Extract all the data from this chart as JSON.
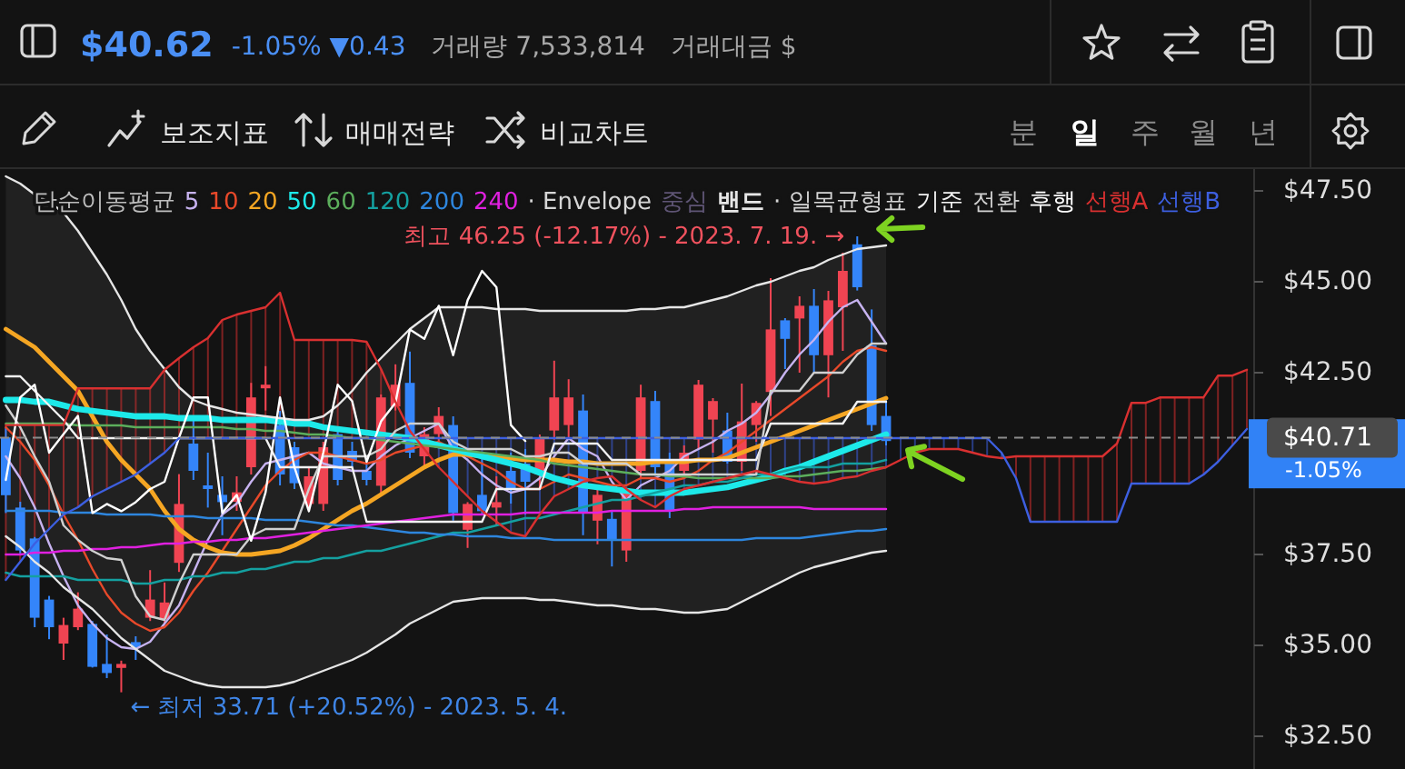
{
  "chart_data": {
    "type": "candlestick",
    "title": "$40.62",
    "subtitle": "-1.05% ▼0.43",
    "legend_title": "단순이동평균",
    "legend": "top",
    "tick_labels": "y",
    "annotations": [
      "· Envelope",
      "중심",
      "· 일목균형표",
      "최고 46.25 (-12.17%) - 2023. 7. 19. →",
      "← 최저 33.71 (+20.52%) - 2023. 5. 4.",
      "거래량 7,533,814",
      "거래대금 $",
      "보조지표",
      "매매전략",
      "비교차트",
      "분",
      "일",
      "주",
      "월",
      "년",
      "-1.05%"
    ],
    "categories": [
      null,
      null,
      null,
      null,
      null,
      null,
      null,
      null,
      null,
      null,
      null,
      null,
      null,
      null,
      null,
      null,
      null,
      null,
      null,
      null,
      null,
      null,
      null,
      null,
      null,
      null,
      null,
      null,
      null,
      null,
      null,
      null,
      null,
      null,
      null,
      null,
      null,
      null,
      null,
      null,
      null,
      null,
      null,
      null,
      null,
      null,
      null,
      null,
      null,
      null,
      null,
      null,
      null,
      null,
      null,
      null,
      null,
      null,
      null,
      null,
      null,
      null,
      null,
      null,
      null,
      null,
      null,
      null,
      null,
      null,
      null,
      null,
      null,
      null,
      null,
      null,
      null,
      null,
      null,
      null,
      null,
      null,
      null,
      null,
      null,
      null,
      null
    ],
    "ylim": [
      31.6,
      48.1
    ],
    "yticks": [
      {
        "value": 32.5,
        "label": "$32.50"
      },
      {
        "value": 35,
        "label": "$35.00"
      },
      {
        "value": 37.5,
        "label": "$37.50"
      },
      {
        "value": 42.5,
        "label": "$42.50"
      },
      {
        "value": 45,
        "label": "$45.00"
      },
      {
        "value": 47.5,
        "label": "$47.50"
      }
    ],
    "ref_lines": [
      {
        "axis": "y",
        "value": 40.71,
        "label": "$40.71",
        "color": "#8c8c8c",
        "line_style": "dashed"
      }
    ],
    "ohlc": [
      [
        40.72,
        41.0,
        38.64,
        39.13
      ],
      [
        38.79,
        38.95,
        37.53,
        37.61
      ],
      [
        37.94,
        37.98,
        35.5,
        35.76
      ],
      [
        36.26,
        36.36,
        35.17,
        35.5
      ],
      [
        35.05,
        35.76,
        34.6,
        35.56
      ],
      [
        35.5,
        36.46,
        35.42,
        36.01
      ],
      [
        35.59,
        35.67,
        34.39,
        34.41
      ],
      [
        34.49,
        35.3,
        34.1,
        34.24
      ],
      [
        34.38,
        34.58,
        33.71,
        34.49
      ],
      [
        35.09,
        35.25,
        34.6,
        34.95
      ],
      [
        35.76,
        37.07,
        35.67,
        36.26
      ],
      [
        35.72,
        36.73,
        35.56,
        36.18
      ],
      [
        37.27,
        39.71,
        37.02,
        38.89
      ],
      [
        40.55,
        41.23,
        39.55,
        39.8
      ],
      [
        39.4,
        40.3,
        38.79,
        39.3
      ],
      [
        39.14,
        39.65,
        38.03,
        38.94
      ],
      [
        38.95,
        39.65,
        38.7,
        39.21
      ],
      [
        39.9,
        42.22,
        39.7,
        41.82
      ],
      [
        42.07,
        42.68,
        41.46,
        42.17
      ],
      [
        41.06,
        41.45,
        39.4,
        39.7
      ],
      [
        40.45,
        40.6,
        39.3,
        39.46
      ],
      [
        38.89,
        39.9,
        38.7,
        39.65
      ],
      [
        38.89,
        40.6,
        38.7,
        40.45
      ],
      [
        40.81,
        41.0,
        39.4,
        39.55
      ],
      [
        40.35,
        40.6,
        39.9,
        40.05
      ],
      [
        39.8,
        40.1,
        39.4,
        39.55
      ],
      [
        39.39,
        41.9,
        39.14,
        41.82
      ],
      [
        41.57,
        42.73,
        41.46,
        42.17
      ],
      [
        42.22,
        43.08,
        40.15,
        40.3
      ],
      [
        40.2,
        41.0,
        39.9,
        40.81
      ],
      [
        40.81,
        41.55,
        40.5,
        41.31
      ],
      [
        41.06,
        41.3,
        38.43,
        38.64
      ],
      [
        38.18,
        38.94,
        37.68,
        38.89
      ],
      [
        39.14,
        40.3,
        38.6,
        38.69
      ],
      [
        38.79,
        39.65,
        38.28,
        38.94
      ],
      [
        39.8,
        40.3,
        38.9,
        39.3
      ],
      [
        40.0,
        40.4,
        38.6,
        39.5
      ],
      [
        39.7,
        40.8,
        39.3,
        40.71
      ],
      [
        40.91,
        42.83,
        40.66,
        41.82
      ],
      [
        41.06,
        42.32,
        40.71,
        41.82
      ],
      [
        41.46,
        41.9,
        38.03,
        38.64
      ],
      [
        38.43,
        39.39,
        37.78,
        39.14
      ],
      [
        38.48,
        38.69,
        37.17,
        37.88
      ],
      [
        37.61,
        39.3,
        37.3,
        39.21
      ],
      [
        39.8,
        42.17,
        39.6,
        41.82
      ],
      [
        41.72,
        42.0,
        39.7,
        39.9
      ],
      [
        40.05,
        40.3,
        38.5,
        38.69
      ],
      [
        39.8,
        40.5,
        39.6,
        40.3
      ],
      [
        40.66,
        42.3,
        40.4,
        42.17
      ],
      [
        41.21,
        41.8,
        40.3,
        41.72
      ],
      [
        40.91,
        41.4,
        40.0,
        40.05
      ],
      [
        40.05,
        42.2,
        39.8,
        41.16
      ],
      [
        41.06,
        41.72,
        40.6,
        41.67
      ],
      [
        41.97,
        45.1,
        41.31,
        43.69
      ],
      [
        43.94,
        44.0,
        42.6,
        43.43
      ],
      [
        43.99,
        44.6,
        42.5,
        44.34
      ],
      [
        44.34,
        44.8,
        42.5,
        42.98
      ],
      [
        42.98,
        44.75,
        41.82,
        44.49
      ],
      [
        44.3,
        45.8,
        43.1,
        45.3
      ],
      [
        46.03,
        46.25,
        44.76,
        44.85
      ],
      [
        43.25,
        44.24,
        40.9,
        41.06
      ],
      [
        41.31,
        41.82,
        40.5,
        40.62
      ],
      null,
      null,
      null,
      null,
      null,
      null,
      null,
      null,
      null,
      null,
      null,
      null,
      null,
      null,
      null,
      null,
      null,
      null,
      null,
      null,
      null,
      null,
      null,
      null,
      null
    ],
    "colors": [
      "#3485fa",
      "#3485fa",
      "#3485fa",
      "#3485fa",
      "#f04452",
      "#f04452",
      "#3485fa",
      "#3485fa",
      "#f04452",
      "#3485fa",
      "#f04452",
      "#f04452",
      "#f04452",
      "#3485fa",
      "#3485fa",
      "#3485fa",
      "#f04452",
      "#f04452",
      "#f04452",
      "#3485fa",
      "#3485fa",
      "#f04452",
      "#f04452",
      "#3485fa",
      "#3485fa",
      "#3485fa",
      "#f04452",
      "#f04452",
      "#3485fa",
      "#f04452",
      "#f04452",
      "#3485fa",
      "#f04452",
      "#3485fa",
      "#f04452",
      "#3485fa",
      "#3485fa",
      "#f04452",
      "#f04452",
      "#f04452",
      "#3485fa",
      "#f04452",
      "#3485fa",
      "#f04452",
      "#f04452",
      "#3485fa",
      "#3485fa",
      "#f04452",
      "#f04452",
      "#f04452",
      "#3485fa",
      "#f04452",
      "#f04452",
      "#f04452",
      "#3485fa",
      "#f04452",
      "#3485fa",
      "#f04452",
      "#f04452",
      "#3485fa",
      "#3485fa",
      "#3485fa",
      null,
      null,
      null,
      null,
      null,
      null,
      null,
      null,
      null,
      null,
      null,
      null,
      null,
      null,
      null,
      null,
      null,
      null,
      null,
      null,
      null,
      null,
      null,
      null,
      null
    ],
    "series": [
      {
        "name": "5",
        "type": "line",
        "color": "#c7b3f0",
        "values": [
          40.2,
          39.6,
          38.8,
          37.8,
          36.9,
          36.1,
          35.6,
          35.2,
          34.95,
          34.9,
          35.1,
          35.6,
          36.1,
          37.0,
          37.9,
          38.6,
          38.9,
          39.5,
          40.0,
          40.1,
          40.2,
          40.3,
          40.0,
          39.9,
          39.8,
          39.8,
          40.2,
          40.5,
          40.7,
          40.9,
          41.1,
          40.4,
          40.1,
          39.7,
          39.4,
          39.2,
          39.3,
          39.6,
          40.2,
          40.7,
          40.4,
          40.2,
          39.5,
          39.0,
          39.4,
          39.6,
          39.8,
          40.2,
          40.4,
          40.6,
          40.9,
          41.1,
          41.4,
          41.9,
          42.5,
          43.0,
          43.4,
          43.9,
          44.3,
          44.5,
          43.9,
          43.3,
          null,
          null,
          null,
          null,
          null,
          null,
          null,
          null,
          null,
          null,
          null,
          null,
          null,
          null,
          null,
          null,
          null,
          null,
          null,
          null,
          null,
          null,
          null,
          null,
          null
        ]
      },
      {
        "name": "10",
        "type": "line",
        "color": "#e8492a",
        "values": [
          41.0,
          40.6,
          40.1,
          39.4,
          38.6,
          37.9,
          37.1,
          36.4,
          35.9,
          35.6,
          35.4,
          35.5,
          35.9,
          36.5,
          37.0,
          37.6,
          38.2,
          38.8,
          39.4,
          39.8,
          40.1,
          40.3,
          40.3,
          40.2,
          40.1,
          40.0,
          40.1,
          40.3,
          40.4,
          40.5,
          40.6,
          40.4,
          40.2,
          40.0,
          39.8,
          39.5,
          39.3,
          39.3,
          39.5,
          39.7,
          39.6,
          39.5,
          39.4,
          39.4,
          39.6,
          39.6,
          39.5,
          39.6,
          39.8,
          40.1,
          40.3,
          40.6,
          40.9,
          41.2,
          41.5,
          41.8,
          42.1,
          42.4,
          42.8,
          43.1,
          43.2,
          43.1,
          null,
          null,
          null,
          null,
          null,
          null,
          null,
          null,
          null,
          null,
          null,
          null,
          null,
          null,
          null,
          null,
          null,
          null,
          null,
          null,
          null,
          null,
          null,
          null,
          null
        ]
      },
      {
        "name": "20",
        "type": "line",
        "color": "#f5a623",
        "values": [
          43.7,
          43.45,
          43.2,
          42.8,
          42.4,
          42.0,
          41.3,
          40.6,
          40.1,
          39.7,
          39.3,
          38.7,
          38.2,
          37.9,
          37.7,
          37.55,
          37.5,
          37.5,
          37.55,
          37.6,
          37.75,
          37.95,
          38.2,
          38.45,
          38.7,
          38.9,
          39.15,
          39.4,
          39.65,
          39.9,
          40.1,
          40.25,
          40.25,
          40.2,
          40.2,
          40.15,
          40.1,
          40.1,
          40.1,
          40.05,
          40.05,
          40.0,
          40.0,
          40.0,
          40.0,
          40.05,
          40.05,
          40.05,
          40.1,
          40.1,
          40.15,
          40.3,
          40.45,
          40.6,
          40.75,
          40.9,
          41.05,
          41.2,
          41.35,
          41.5,
          41.65,
          41.8,
          null,
          null,
          null,
          null,
          null,
          null,
          null,
          null,
          null,
          null,
          null,
          null,
          null,
          null,
          null,
          null,
          null,
          null,
          null,
          null,
          null,
          null,
          null,
          null,
          null
        ]
      },
      {
        "name": "50",
        "type": "line",
        "color": "#1de9e9",
        "values": [
          41.75,
          41.75,
          41.7,
          41.7,
          41.6,
          41.5,
          41.45,
          41.4,
          41.35,
          41.3,
          41.3,
          41.3,
          41.25,
          41.25,
          41.25,
          41.2,
          41.2,
          41.2,
          41.2,
          41.15,
          41.1,
          41.1,
          41.0,
          40.95,
          40.9,
          40.85,
          40.8,
          40.75,
          40.7,
          40.6,
          40.5,
          40.4,
          40.3,
          40.2,
          40.1,
          40.0,
          39.9,
          39.75,
          39.6,
          39.5,
          39.4,
          39.35,
          39.3,
          39.25,
          39.2,
          39.2,
          39.2,
          39.2,
          39.25,
          39.3,
          39.35,
          39.45,
          39.55,
          39.65,
          39.8,
          39.9,
          40.05,
          40.2,
          40.35,
          40.5,
          40.65,
          40.8,
          null,
          null,
          null,
          null,
          null,
          null,
          null,
          null,
          null,
          null,
          null,
          null,
          null,
          null,
          null,
          null,
          null,
          null,
          null,
          null,
          null,
          null,
          null,
          null,
          null
        ]
      },
      {
        "name": "60",
        "type": "line",
        "color": "#5cae5c",
        "values": [
          41.1,
          41.1,
          41.1,
          41.1,
          41.1,
          41.05,
          41.05,
          41.05,
          41.05,
          41.0,
          41.0,
          41.0,
          41.0,
          41.0,
          41.0,
          41.0,
          40.95,
          40.95,
          40.9,
          40.9,
          40.85,
          40.8,
          40.8,
          40.75,
          40.7,
          40.7,
          40.65,
          40.6,
          40.55,
          40.5,
          40.45,
          40.4,
          40.35,
          40.3,
          40.25,
          40.2,
          40.15,
          40.1,
          40.0,
          39.95,
          39.9,
          39.85,
          39.8,
          39.75,
          39.7,
          39.7,
          39.65,
          39.65,
          39.6,
          39.6,
          39.6,
          39.6,
          39.6,
          39.6,
          39.65,
          39.65,
          39.7,
          39.75,
          39.8,
          39.8,
          39.85,
          39.9,
          null,
          null,
          null,
          null,
          null,
          null,
          null,
          null,
          null,
          null,
          null,
          null,
          null,
          null,
          null,
          null,
          null,
          null,
          null,
          null,
          null,
          null,
          null,
          null,
          null
        ]
      },
      {
        "name": "120",
        "type": "line",
        "color": "#14a0a0",
        "values": [
          37.0,
          36.9,
          36.9,
          36.9,
          36.9,
          36.8,
          36.8,
          36.8,
          36.8,
          36.7,
          36.7,
          36.8,
          36.8,
          36.9,
          36.9,
          37.0,
          37.0,
          37.1,
          37.1,
          37.2,
          37.3,
          37.3,
          37.4,
          37.4,
          37.5,
          37.6,
          37.6,
          37.7,
          37.8,
          37.9,
          38.0,
          38.1,
          38.1,
          38.2,
          38.3,
          38.4,
          38.5,
          38.5,
          38.6,
          38.7,
          38.8,
          38.9,
          39.0,
          39.0,
          39.1,
          39.2,
          39.3,
          39.4,
          39.4,
          39.5,
          39.5,
          39.6,
          39.7,
          39.7,
          39.8,
          39.9,
          39.9,
          39.9,
          40.0,
          40.0,
          40.0,
          40.1,
          null,
          null,
          null,
          null,
          null,
          null,
          null,
          null,
          null,
          null,
          null,
          null,
          null,
          null,
          null,
          null,
          null,
          null,
          null,
          null,
          null,
          null,
          null,
          null,
          null
        ]
      },
      {
        "name": "200",
        "type": "line",
        "color": "#2e86de",
        "values": [
          38.7,
          38.7,
          38.7,
          38.7,
          38.65,
          38.65,
          38.65,
          38.6,
          38.6,
          38.6,
          38.6,
          38.55,
          38.55,
          38.55,
          38.5,
          38.5,
          38.5,
          38.5,
          38.45,
          38.45,
          38.45,
          38.4,
          38.35,
          38.3,
          38.3,
          38.25,
          38.2,
          38.15,
          38.1,
          38.1,
          38.05,
          38.05,
          38.0,
          38.0,
          38.0,
          37.95,
          37.95,
          37.95,
          37.9,
          37.9,
          37.9,
          37.9,
          37.9,
          37.9,
          37.9,
          37.9,
          37.9,
          37.9,
          37.9,
          37.9,
          37.9,
          37.9,
          37.95,
          37.95,
          37.95,
          37.95,
          38.0,
          38.05,
          38.1,
          38.15,
          38.15,
          38.2,
          null,
          null,
          null,
          null,
          null,
          null,
          null,
          null,
          null,
          null,
          null,
          null,
          null,
          null,
          null,
          null,
          null,
          null,
          null,
          null,
          null,
          null,
          null,
          null,
          null
        ]
      },
      {
        "name": "240",
        "type": "line",
        "color": "#e020e0",
        "values": [
          37.5,
          37.5,
          37.55,
          37.55,
          37.6,
          37.6,
          37.65,
          37.65,
          37.7,
          37.7,
          37.75,
          37.8,
          37.8,
          37.85,
          37.85,
          37.9,
          37.9,
          37.95,
          37.95,
          38.0,
          38.05,
          38.1,
          38.15,
          38.2,
          38.25,
          38.3,
          38.35,
          38.4,
          38.45,
          38.5,
          38.55,
          38.6,
          38.6,
          38.6,
          38.6,
          38.6,
          38.65,
          38.65,
          38.65,
          38.65,
          38.65,
          38.65,
          38.7,
          38.7,
          38.7,
          38.7,
          38.7,
          38.75,
          38.75,
          38.8,
          38.8,
          38.8,
          38.8,
          38.8,
          38.8,
          38.8,
          38.75,
          38.75,
          38.75,
          38.75,
          38.75,
          38.75,
          null,
          null,
          null,
          null,
          null,
          null,
          null,
          null,
          null,
          null,
          null,
          null,
          null,
          null,
          null,
          null,
          null,
          null,
          null,
          null,
          null,
          null,
          null,
          null,
          null
        ]
      },
      {
        "name": "밴드",
        "type": "line",
        "color": "#e6e6e6",
        "values": [
          47.9,
          47.7,
          47.4,
          47.2,
          46.9,
          46.4,
          45.8,
          45.2,
          44.5,
          43.7,
          43.1,
          42.6,
          42.1,
          41.75,
          41.6,
          41.5,
          41.4,
          41.35,
          41.3,
          41.25,
          41.2,
          41.2,
          41.3,
          41.6,
          42.0,
          42.5,
          42.9,
          43.3,
          43.7,
          44.0,
          44.3,
          44.3,
          44.3,
          44.3,
          44.25,
          44.25,
          44.25,
          44.2,
          44.2,
          44.2,
          44.2,
          44.2,
          44.2,
          44.2,
          44.25,
          44.25,
          44.3,
          44.3,
          44.4,
          44.5,
          44.6,
          44.75,
          44.9,
          45.0,
          45.15,
          45.3,
          45.4,
          45.6,
          45.75,
          45.9,
          45.95,
          46.0,
          null,
          null,
          null,
          null,
          null,
          null,
          null,
          null,
          null,
          null,
          null,
          null,
          null,
          null,
          null,
          null,
          null,
          null,
          null,
          null,
          null,
          null,
          null,
          null,
          null
        ],
        "upper": [
          47.9,
          47.7,
          47.4,
          47.2,
          46.9,
          46.4,
          45.8,
          45.2,
          44.5,
          43.7,
          43.1,
          42.6,
          42.1,
          41.75,
          41.6,
          41.5,
          41.4,
          41.35,
          41.3,
          41.25,
          41.2,
          41.2,
          41.3,
          41.6,
          42.0,
          42.5,
          42.9,
          43.3,
          43.7,
          44.0,
          44.3,
          44.3,
          44.3,
          44.3,
          44.25,
          44.25,
          44.25,
          44.2,
          44.2,
          44.2,
          44.2,
          44.2,
          44.2,
          44.2,
          44.25,
          44.25,
          44.3,
          44.3,
          44.4,
          44.5,
          44.6,
          44.75,
          44.9,
          45.0,
          45.15,
          45.3,
          45.4,
          45.6,
          45.75,
          45.9,
          45.95,
          46.0,
          null,
          null,
          null,
          null,
          null,
          null,
          null,
          null,
          null,
          null,
          null,
          null,
          null,
          null,
          null,
          null,
          null,
          null,
          null,
          null,
          null,
          null,
          null,
          null,
          null
        ],
        "lower": [
          38.0,
          37.7,
          37.3,
          37.0,
          36.6,
          36.3,
          36.0,
          35.6,
          35.2,
          34.9,
          34.6,
          34.3,
          34.15,
          34.0,
          33.9,
          33.85,
          33.85,
          33.85,
          33.85,
          33.9,
          34.0,
          34.15,
          34.3,
          34.45,
          34.6,
          34.8,
          35.05,
          35.3,
          35.6,
          35.8,
          36.0,
          36.2,
          36.25,
          36.3,
          36.3,
          36.3,
          36.3,
          36.25,
          36.25,
          36.2,
          36.15,
          36.1,
          36.1,
          36.05,
          36.0,
          36.0,
          35.95,
          35.9,
          35.9,
          35.95,
          36.0,
          36.2,
          36.4,
          36.6,
          36.8,
          37.0,
          37.15,
          37.25,
          37.35,
          37.45,
          37.55,
          37.6,
          null,
          null,
          null,
          null,
          null,
          null,
          null,
          null,
          null,
          null,
          null,
          null,
          null,
          null,
          null,
          null,
          null,
          null,
          null,
          null,
          null,
          null,
          null,
          null,
          null
        ]
      },
      {
        "type": "line",
        "color": "#e6e6e6",
        "values": [
          38.0,
          37.7,
          37.3,
          37.0,
          36.6,
          36.3,
          36.0,
          35.6,
          35.2,
          34.9,
          34.6,
          34.3,
          34.15,
          34.0,
          33.9,
          33.85,
          33.85,
          33.85,
          33.85,
          33.9,
          34.0,
          34.15,
          34.3,
          34.45,
          34.6,
          34.8,
          35.05,
          35.3,
          35.6,
          35.8,
          36.0,
          36.2,
          36.25,
          36.3,
          36.3,
          36.3,
          36.3,
          36.25,
          36.25,
          36.2,
          36.15,
          36.1,
          36.1,
          36.05,
          36.0,
          36.0,
          35.95,
          35.9,
          35.9,
          35.95,
          36.0,
          36.2,
          36.4,
          36.6,
          36.8,
          37.0,
          37.15,
          37.25,
          37.35,
          37.45,
          37.55,
          37.6,
          null,
          null,
          null,
          null,
          null,
          null,
          null,
          null,
          null,
          null,
          null,
          null,
          null,
          null,
          null,
          null,
          null,
          null,
          null,
          null,
          null,
          null,
          null,
          null,
          null
        ]
      },
      {
        "name": "기준",
        "type": "line",
        "color": "#f2f2f2",
        "values": [
          42.4,
          42.4,
          42.0,
          41.6,
          41.2,
          40.7,
          40.7,
          40.7,
          40.7,
          40.7,
          40.7,
          40.7,
          40.7,
          40.7,
          40.7,
          40.7,
          40.7,
          40.7,
          40.7,
          39.9,
          39.9,
          39.9,
          39.9,
          39.9,
          39.9,
          38.4,
          38.4,
          38.4,
          38.4,
          38.4,
          38.4,
          38.4,
          38.4,
          38.4,
          39.3,
          39.3,
          39.3,
          39.3,
          40.55,
          40.55,
          40.55,
          40.55,
          40.1,
          40.1,
          40.1,
          40.1,
          40.1,
          40.1,
          40.1,
          40.1,
          40.1,
          40.1,
          40.1,
          41.1,
          41.1,
          41.1,
          41.1,
          41.1,
          41.1,
          41.7,
          41.7,
          41.7,
          null,
          null,
          null,
          null,
          null,
          null,
          null,
          null,
          null,
          null,
          null,
          null,
          null,
          null,
          null,
          null,
          null,
          null,
          null,
          null,
          null,
          null,
          null,
          null,
          null
        ]
      },
      {
        "name": "전환",
        "type": "line",
        "color": "#d0d0d0",
        "values": [
          41.6,
          41.0,
          40.2,
          39.5,
          38.3,
          37.9,
          37.6,
          37.4,
          37.35,
          36.35,
          35.8,
          35.7,
          36.7,
          37.5,
          37.5,
          37.5,
          37.5,
          38.0,
          38.2,
          38.2,
          38.2,
          39.3,
          40.2,
          40.2,
          40.2,
          40.2,
          40.4,
          40.9,
          41.1,
          41.1,
          41.1,
          40.6,
          40.4,
          40.4,
          40.4,
          40.4,
          40.2,
          40.2,
          40.3,
          40.3,
          40.0,
          40.0,
          40.0,
          40.0,
          39.7,
          39.7,
          39.7,
          39.7,
          39.7,
          39.7,
          39.7,
          39.7,
          39.7,
          42.0,
          42.0,
          42.0,
          42.5,
          42.5,
          42.5,
          43.0,
          43.3,
          43.3,
          null,
          null,
          null,
          null,
          null,
          null,
          null,
          null,
          null,
          null,
          null,
          null,
          null,
          null,
          null,
          null,
          null,
          null,
          null,
          null,
          null,
          null,
          null,
          null,
          null
        ]
      },
      {
        "name": "후행",
        "type": "line",
        "color": "#ffffff",
        "values": [
          39.55,
          41.82,
          42.17,
          40.3,
          40.81,
          41.31,
          38.64,
          38.89,
          38.69,
          38.94,
          39.3,
          39.5,
          40.71,
          41.82,
          41.82,
          38.64,
          39.14,
          37.88,
          39.21,
          41.82,
          39.9,
          38.69,
          40.3,
          42.17,
          41.72,
          40.05,
          41.16,
          41.67,
          43.69,
          43.43,
          44.34,
          42.98,
          44.49,
          45.3,
          44.85,
          41.06,
          40.62,
          null,
          null,
          null,
          null,
          null,
          null,
          null,
          null,
          null,
          null,
          null,
          null,
          null,
          null,
          null,
          null,
          null,
          null,
          null,
          null,
          null,
          null,
          null,
          null,
          null,
          null,
          null,
          null,
          null,
          null,
          null,
          null,
          null,
          null,
          null,
          null,
          null,
          null,
          null,
          null,
          null,
          null,
          null,
          null,
          null,
          null,
          null,
          null,
          null,
          null
        ]
      },
      {
        "name": "선행A",
        "type": "line",
        "color": "#d93030",
        "values": [
          41.06,
          41.06,
          41.06,
          41.06,
          41.06,
          42.07,
          42.07,
          42.07,
          42.07,
          42.07,
          42.07,
          42.58,
          42.9,
          43.2,
          43.45,
          43.95,
          44.1,
          44.2,
          44.3,
          44.7,
          43.4,
          43.4,
          43.4,
          43.4,
          43.4,
          43.35,
          42.6,
          41.7,
          40.9,
          40.4,
          39.9,
          39.5,
          39.1,
          38.7,
          38.4,
          38.1,
          38.0,
          38.6,
          39.1,
          39.3,
          39.5,
          39.6,
          39.65,
          39.3,
          39.0,
          38.8,
          39.1,
          39.3,
          39.4,
          39.5,
          39.6,
          39.7,
          39.8,
          39.7,
          39.6,
          39.5,
          39.45,
          39.5,
          39.6,
          39.65,
          39.8,
          39.9,
          40.1,
          40.3,
          40.4,
          40.4,
          40.4,
          40.3,
          40.2,
          40.15,
          40.2,
          40.2,
          40.2,
          40.2,
          40.2,
          40.2,
          40.2,
          40.55,
          41.67,
          41.67,
          41.82,
          41.82,
          41.82,
          41.82,
          42.42,
          42.42,
          42.58
        ]
      },
      {
        "name": "선행B",
        "type": "line",
        "color": "#3d5fe0",
        "values": [
          36.8,
          37.3,
          37.8,
          38.2,
          38.6,
          38.8,
          39.1,
          39.3,
          39.5,
          39.7,
          40.0,
          40.3,
          40.7,
          40.7,
          40.7,
          40.7,
          40.7,
          40.7,
          40.7,
          40.7,
          40.7,
          40.7,
          40.7,
          40.7,
          40.7,
          40.7,
          40.7,
          40.7,
          40.7,
          40.7,
          40.7,
          40.7,
          40.7,
          40.7,
          40.7,
          40.7,
          40.7,
          40.7,
          40.7,
          40.7,
          40.7,
          40.7,
          40.7,
          40.7,
          40.7,
          40.7,
          40.7,
          40.7,
          40.7,
          40.7,
          40.7,
          40.7,
          40.7,
          40.7,
          40.7,
          40.7,
          40.7,
          40.7,
          40.7,
          40.7,
          40.7,
          40.7,
          40.7,
          40.7,
          40.7,
          40.7,
          40.7,
          40.7,
          40.7,
          40.3,
          39.6,
          38.4,
          38.4,
          38.4,
          38.4,
          38.4,
          38.4,
          38.4,
          39.45,
          39.45,
          39.45,
          39.45,
          39.45,
          39.7,
          40.05,
          40.5,
          40.95
        ]
      }
    ]
  }
}
